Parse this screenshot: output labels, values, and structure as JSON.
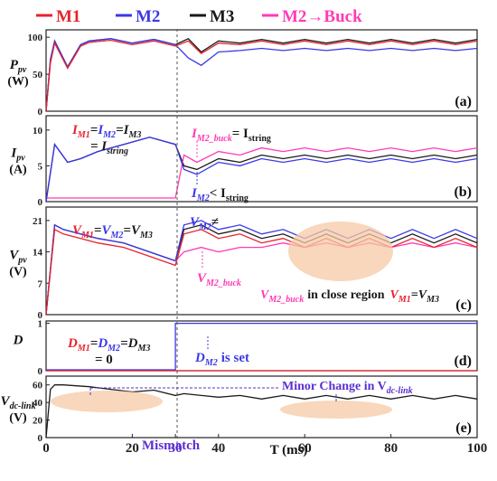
{
  "colors": {
    "M1": "#e8222d",
    "M2": "#3b38e6",
    "M3": "#1a1a1a",
    "M2_buck": "#ff3ab6",
    "annot_dark": "#1a1a8c",
    "mismatch": "#5b2fd0",
    "highlight": "#f5c9a6",
    "dash": "#555555"
  },
  "legend": {
    "m1": "M1",
    "m2": "M2",
    "m3": "M3",
    "m2buck": "M2→Buck"
  },
  "chart_data": [
    {
      "id": "a",
      "type": "line",
      "ylabel_main": "P",
      "ylabel_sub": "pv",
      "ylabel_unit": "(W)",
      "panel_tag": "(a)",
      "ylim": [
        0,
        110
      ],
      "yticks": [
        0,
        50,
        100
      ],
      "xlim": [
        0,
        100
      ],
      "series": [
        {
          "name": "M3",
          "x": [
            0,
            1,
            2,
            5,
            8,
            10,
            15,
            20,
            25,
            30,
            33,
            36,
            40,
            45,
            50,
            55,
            60,
            65,
            70,
            75,
            80,
            85,
            90,
            95,
            100
          ],
          "y": [
            0,
            70,
            95,
            60,
            90,
            95,
            98,
            92,
            97,
            90,
            98,
            80,
            95,
            92,
            97,
            92,
            97,
            92,
            97,
            92,
            97,
            92,
            97,
            92,
            97
          ]
        },
        {
          "name": "M2",
          "x": [
            0,
            1,
            2,
            5,
            8,
            10,
            15,
            20,
            25,
            30,
            33,
            36,
            40,
            45,
            50,
            55,
            60,
            65,
            70,
            75,
            80,
            85,
            90,
            95,
            100
          ],
          "y": [
            0,
            70,
            95,
            60,
            90,
            95,
            98,
            92,
            97,
            90,
            72,
            62,
            80,
            82,
            85,
            82,
            85,
            82,
            85,
            82,
            85,
            82,
            85,
            82,
            85
          ]
        },
        {
          "name": "M1",
          "x": [
            0,
            1,
            2,
            5,
            8,
            10,
            15,
            20,
            25,
            30,
            33,
            36,
            40,
            45,
            50,
            55,
            60,
            65,
            70,
            75,
            80,
            85,
            90,
            95,
            100
          ],
          "y": [
            0,
            65,
            92,
            58,
            88,
            93,
            96,
            90,
            95,
            88,
            95,
            78,
            92,
            90,
            95,
            90,
            95,
            90,
            95,
            90,
            95,
            90,
            95,
            90,
            95
          ]
        }
      ]
    },
    {
      "id": "b",
      "type": "line",
      "ylabel_main": "I",
      "ylabel_sub": "pv",
      "ylabel_unit": "(A)",
      "panel_tag": "(b)",
      "ylim": [
        0,
        12
      ],
      "yticks": [
        0,
        5,
        10
      ],
      "xlim": [
        0,
        100
      ],
      "annotations": {
        "eq_left": "I",
        "eq_left2": "= I",
        "eq_left_sub": "string",
        "buck_label": "I",
        "buck_sub": "M2_buck",
        "buck_rest": "= I",
        "buck_rest_sub": "string",
        "less_label": "I",
        "less_sub": "M2",
        "less_rest": "< I",
        "less_rest_sub": "string"
      },
      "series": [
        {
          "name": "M3",
          "x": [
            0,
            2,
            5,
            8,
            12,
            18,
            24,
            30,
            32,
            35,
            40,
            45,
            50,
            55,
            60,
            65,
            70,
            75,
            80,
            85,
            90,
            95,
            100
          ],
          "y": [
            0,
            8,
            5.5,
            6,
            7,
            8,
            9,
            8,
            5,
            4.5,
            6,
            5.5,
            6.5,
            6,
            6.5,
            6,
            6.5,
            6,
            6.5,
            6,
            6.5,
            6,
            6.5
          ]
        },
        {
          "name": "M2_buck",
          "x": [
            0,
            5,
            10,
            15,
            20,
            25,
            30,
            32,
            35,
            40,
            45,
            50,
            55,
            60,
            65,
            70,
            75,
            80,
            85,
            90,
            95,
            100
          ],
          "y": [
            0.5,
            0.5,
            0.5,
            0.5,
            0.5,
            0.5,
            0.5,
            6.5,
            5.5,
            7,
            6.5,
            7.5,
            7,
            7.5,
            7,
            7.5,
            7,
            7.5,
            7,
            7.5,
            7,
            7.5
          ]
        },
        {
          "name": "M2",
          "x": [
            0,
            2,
            5,
            8,
            12,
            18,
            24,
            30,
            32,
            35,
            40,
            45,
            50,
            55,
            60,
            65,
            70,
            75,
            80,
            85,
            90,
            95,
            100
          ],
          "y": [
            0,
            8,
            5.5,
            6,
            7,
            8,
            9,
            8,
            4.5,
            3.8,
            5.5,
            5,
            6,
            5.5,
            6,
            5.5,
            6,
            5.5,
            6,
            5.5,
            6,
            5.5,
            6
          ]
        }
      ]
    },
    {
      "id": "c",
      "type": "line",
      "ylabel_main": "V",
      "ylabel_sub": "pv",
      "ylabel_unit": "(V)",
      "panel_tag": "(c)",
      "ylim": [
        0,
        24
      ],
      "yticks": [
        0,
        7,
        14,
        21
      ],
      "xlim": [
        0,
        100
      ],
      "annotations": {
        "eq": "V",
        "vm2_neq": "V",
        "vm2_neq_sub": "M2",
        "vm2_neq_sym": "≠",
        "vbuck": "V",
        "vbuck_sub": "M2_buck",
        "close_main": "V",
        "close_sub": "M2_buck",
        "close_text": "in close region",
        "close_eq": "V",
        "close_eq_sub1": "M1",
        "close_eq_mid": "=V",
        "close_eq_sub2": "M3"
      },
      "series": [
        {
          "name": "M3",
          "x": [
            0,
            2,
            4,
            8,
            12,
            18,
            24,
            30,
            32,
            36,
            40,
            45,
            50,
            55,
            60,
            65,
            70,
            75,
            80,
            85,
            90,
            95,
            100
          ],
          "y": [
            0,
            20,
            19,
            18,
            17,
            16,
            14,
            12,
            19,
            20,
            18,
            19,
            17,
            18,
            16,
            18,
            16,
            18,
            16,
            18,
            16,
            18,
            16
          ]
        },
        {
          "name": "M2",
          "x": [
            0,
            2,
            4,
            8,
            12,
            18,
            24,
            30,
            32,
            36,
            40,
            45,
            50,
            55,
            60,
            65,
            70,
            75,
            80,
            85,
            90,
            95,
            100
          ],
          "y": [
            0,
            20,
            19,
            18,
            17,
            16,
            14,
            12,
            20,
            21,
            19,
            20,
            18,
            19,
            17,
            19,
            17,
            19,
            17,
            19,
            17,
            19,
            17
          ]
        },
        {
          "name": "M2_buck",
          "x": [
            30,
            32,
            36,
            40,
            45,
            50,
            55,
            60,
            65,
            70,
            75,
            80,
            85,
            90,
            95,
            100
          ],
          "y": [
            12,
            14,
            15,
            14,
            15,
            15,
            16,
            15,
            16,
            15,
            16,
            15,
            16,
            15,
            16,
            15
          ]
        },
        {
          "name": "M1",
          "x": [
            0,
            2,
            4,
            8,
            12,
            18,
            24,
            30,
            32,
            36,
            40,
            45,
            50,
            55,
            60,
            65,
            70,
            75,
            80,
            85,
            90,
            95,
            100
          ],
          "y": [
            0,
            19,
            18,
            17,
            16,
            15,
            13,
            11,
            18,
            19,
            17,
            18,
            16,
            17,
            15,
            17,
            15,
            17,
            15,
            17,
            15,
            17,
            15
          ]
        }
      ]
    },
    {
      "id": "d",
      "type": "line",
      "ylabel_main": "D",
      "panel_tag": "(d)",
      "ylim": [
        0,
        1.05
      ],
      "yticks": [
        0,
        1
      ],
      "xlim": [
        0,
        100
      ],
      "annotations": {
        "eq": "D",
        "eq2": "= 0",
        "set_label": "D",
        "set_sub": "M2",
        "set_text": "is set"
      },
      "series": [
        {
          "name": "M2",
          "x": [
            0,
            30,
            30,
            100
          ],
          "y": [
            0.02,
            0.02,
            1,
            1
          ]
        },
        {
          "name": "M1",
          "x": [
            0,
            100
          ],
          "y": [
            0,
            0
          ]
        }
      ]
    },
    {
      "id": "e",
      "type": "line",
      "ylabel_main": "V",
      "ylabel_sub": "dc-link",
      "ylabel_unit": "(V)",
      "panel_tag": "(e)",
      "ylim": [
        0,
        70
      ],
      "yticks": [
        0,
        20,
        40,
        60
      ],
      "xlim": [
        0,
        100
      ],
      "xticks": [
        0,
        20,
        30,
        40,
        60,
        80,
        100
      ],
      "xlabel": "T (ms)",
      "annotations": {
        "minor": "Minor Change in V",
        "minor_sub": "dc-link",
        "mismatch": "Mismatch"
      },
      "series": [
        {
          "name": "M3",
          "x": [
            0,
            1,
            2,
            4,
            10,
            15,
            20,
            25,
            30,
            32,
            36,
            40,
            45,
            50,
            55,
            60,
            65,
            70,
            75,
            80,
            85,
            90,
            95,
            100
          ],
          "y": [
            0,
            55,
            60,
            60,
            58,
            55,
            52,
            54,
            48,
            50,
            48,
            46,
            48,
            44,
            48,
            44,
            48,
            44,
            48,
            44,
            48,
            44,
            48,
            44
          ]
        }
      ]
    }
  ]
}
